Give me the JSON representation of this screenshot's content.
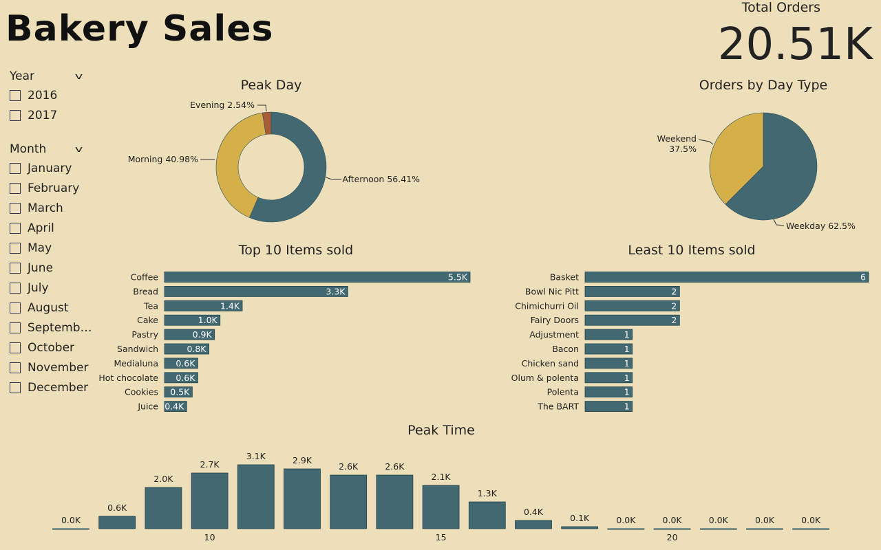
{
  "title": "Bakery Sales",
  "kpi": {
    "label": "Total Orders",
    "value": "20.51K"
  },
  "filters": {
    "year": {
      "label": "Year",
      "options": [
        "2016",
        "2017"
      ]
    },
    "month": {
      "label": "Month",
      "options": [
        "January",
        "February",
        "March",
        "April",
        "May",
        "June",
        "July",
        "August",
        "Septemb…",
        "October",
        "November",
        "December"
      ]
    }
  },
  "colors": {
    "background": "#eddfb9",
    "teal": "#426872",
    "gold": "#d4af4a",
    "brown": "#a85c3a"
  },
  "chart_data": [
    {
      "type": "pie",
      "title": "Peak Day",
      "hole": true,
      "labels": [
        "Afternoon",
        "Morning",
        "Evening"
      ],
      "values": [
        56.41,
        40.98,
        2.54
      ],
      "display": [
        "Afternoon 56.41%",
        "Morning 40.98%",
        "Evening 2.54%"
      ],
      "colors": [
        "#426872",
        "#d4af4a",
        "#a85c3a"
      ]
    },
    {
      "type": "pie",
      "title": "Orders by Day Type",
      "labels": [
        "Weekday",
        "Weekend"
      ],
      "values": [
        62.5,
        37.5
      ],
      "display": [
        "Weekday 62.5%",
        "Weekend",
        "37.5%"
      ],
      "colors": [
        "#426872",
        "#d4af4a"
      ]
    },
    {
      "type": "bar",
      "orientation": "horizontal",
      "title": "Top 10 Items sold",
      "categories": [
        "Coffee",
        "Bread",
        "Tea",
        "Cake",
        "Pastry",
        "Sandwich",
        "Medialuna",
        "Hot chocolate",
        "Cookies",
        "Juice"
      ],
      "values": [
        5.5,
        3.3,
        1.4,
        1.0,
        0.9,
        0.8,
        0.6,
        0.6,
        0.5,
        0.4
      ],
      "data_labels": [
        "5.5K",
        "3.3K",
        "1.4K",
        "1.0K",
        "0.9K",
        "0.8K",
        "0.6K",
        "0.6K",
        "0.5K",
        "0.4K"
      ],
      "unit": "thousands"
    },
    {
      "type": "bar",
      "orientation": "horizontal",
      "title": "Least 10 Items sold",
      "categories": [
        "Basket",
        "Bowl Nic Pitt",
        "Chimichurri Oil",
        "Fairy Doors",
        "Adjustment",
        "Bacon",
        "Chicken sand",
        "Olum & polenta",
        "Polenta",
        "The BART"
      ],
      "values": [
        6,
        2,
        2,
        2,
        1,
        1,
        1,
        1,
        1,
        1
      ],
      "data_labels": [
        "6",
        "2",
        "2",
        "2",
        "1",
        "1",
        "1",
        "1",
        "1",
        "1"
      ]
    },
    {
      "type": "bar",
      "title": "Peak Time",
      "x": [
        7,
        8,
        9,
        10,
        11,
        12,
        13,
        14,
        15,
        16,
        17,
        18,
        19,
        20,
        21,
        22,
        23
      ],
      "values": [
        0.0,
        0.6,
        2.0,
        2.7,
        3.1,
        2.9,
        2.6,
        2.6,
        2.1,
        1.3,
        0.4,
        0.1,
        0.0,
        0.0,
        0.0,
        0.0,
        0.0
      ],
      "data_labels": [
        "0.0K",
        "0.6K",
        "2.0K",
        "2.7K",
        "3.1K",
        "2.9K",
        "2.6K",
        "2.6K",
        "2.1K",
        "1.3K",
        "0.4K",
        "0.1K",
        "0.0K",
        "0.0K",
        "0.0K",
        "0.0K",
        "0.0K"
      ],
      "xticks": [
        "10",
        "15",
        "20"
      ],
      "unit": "thousands"
    }
  ]
}
